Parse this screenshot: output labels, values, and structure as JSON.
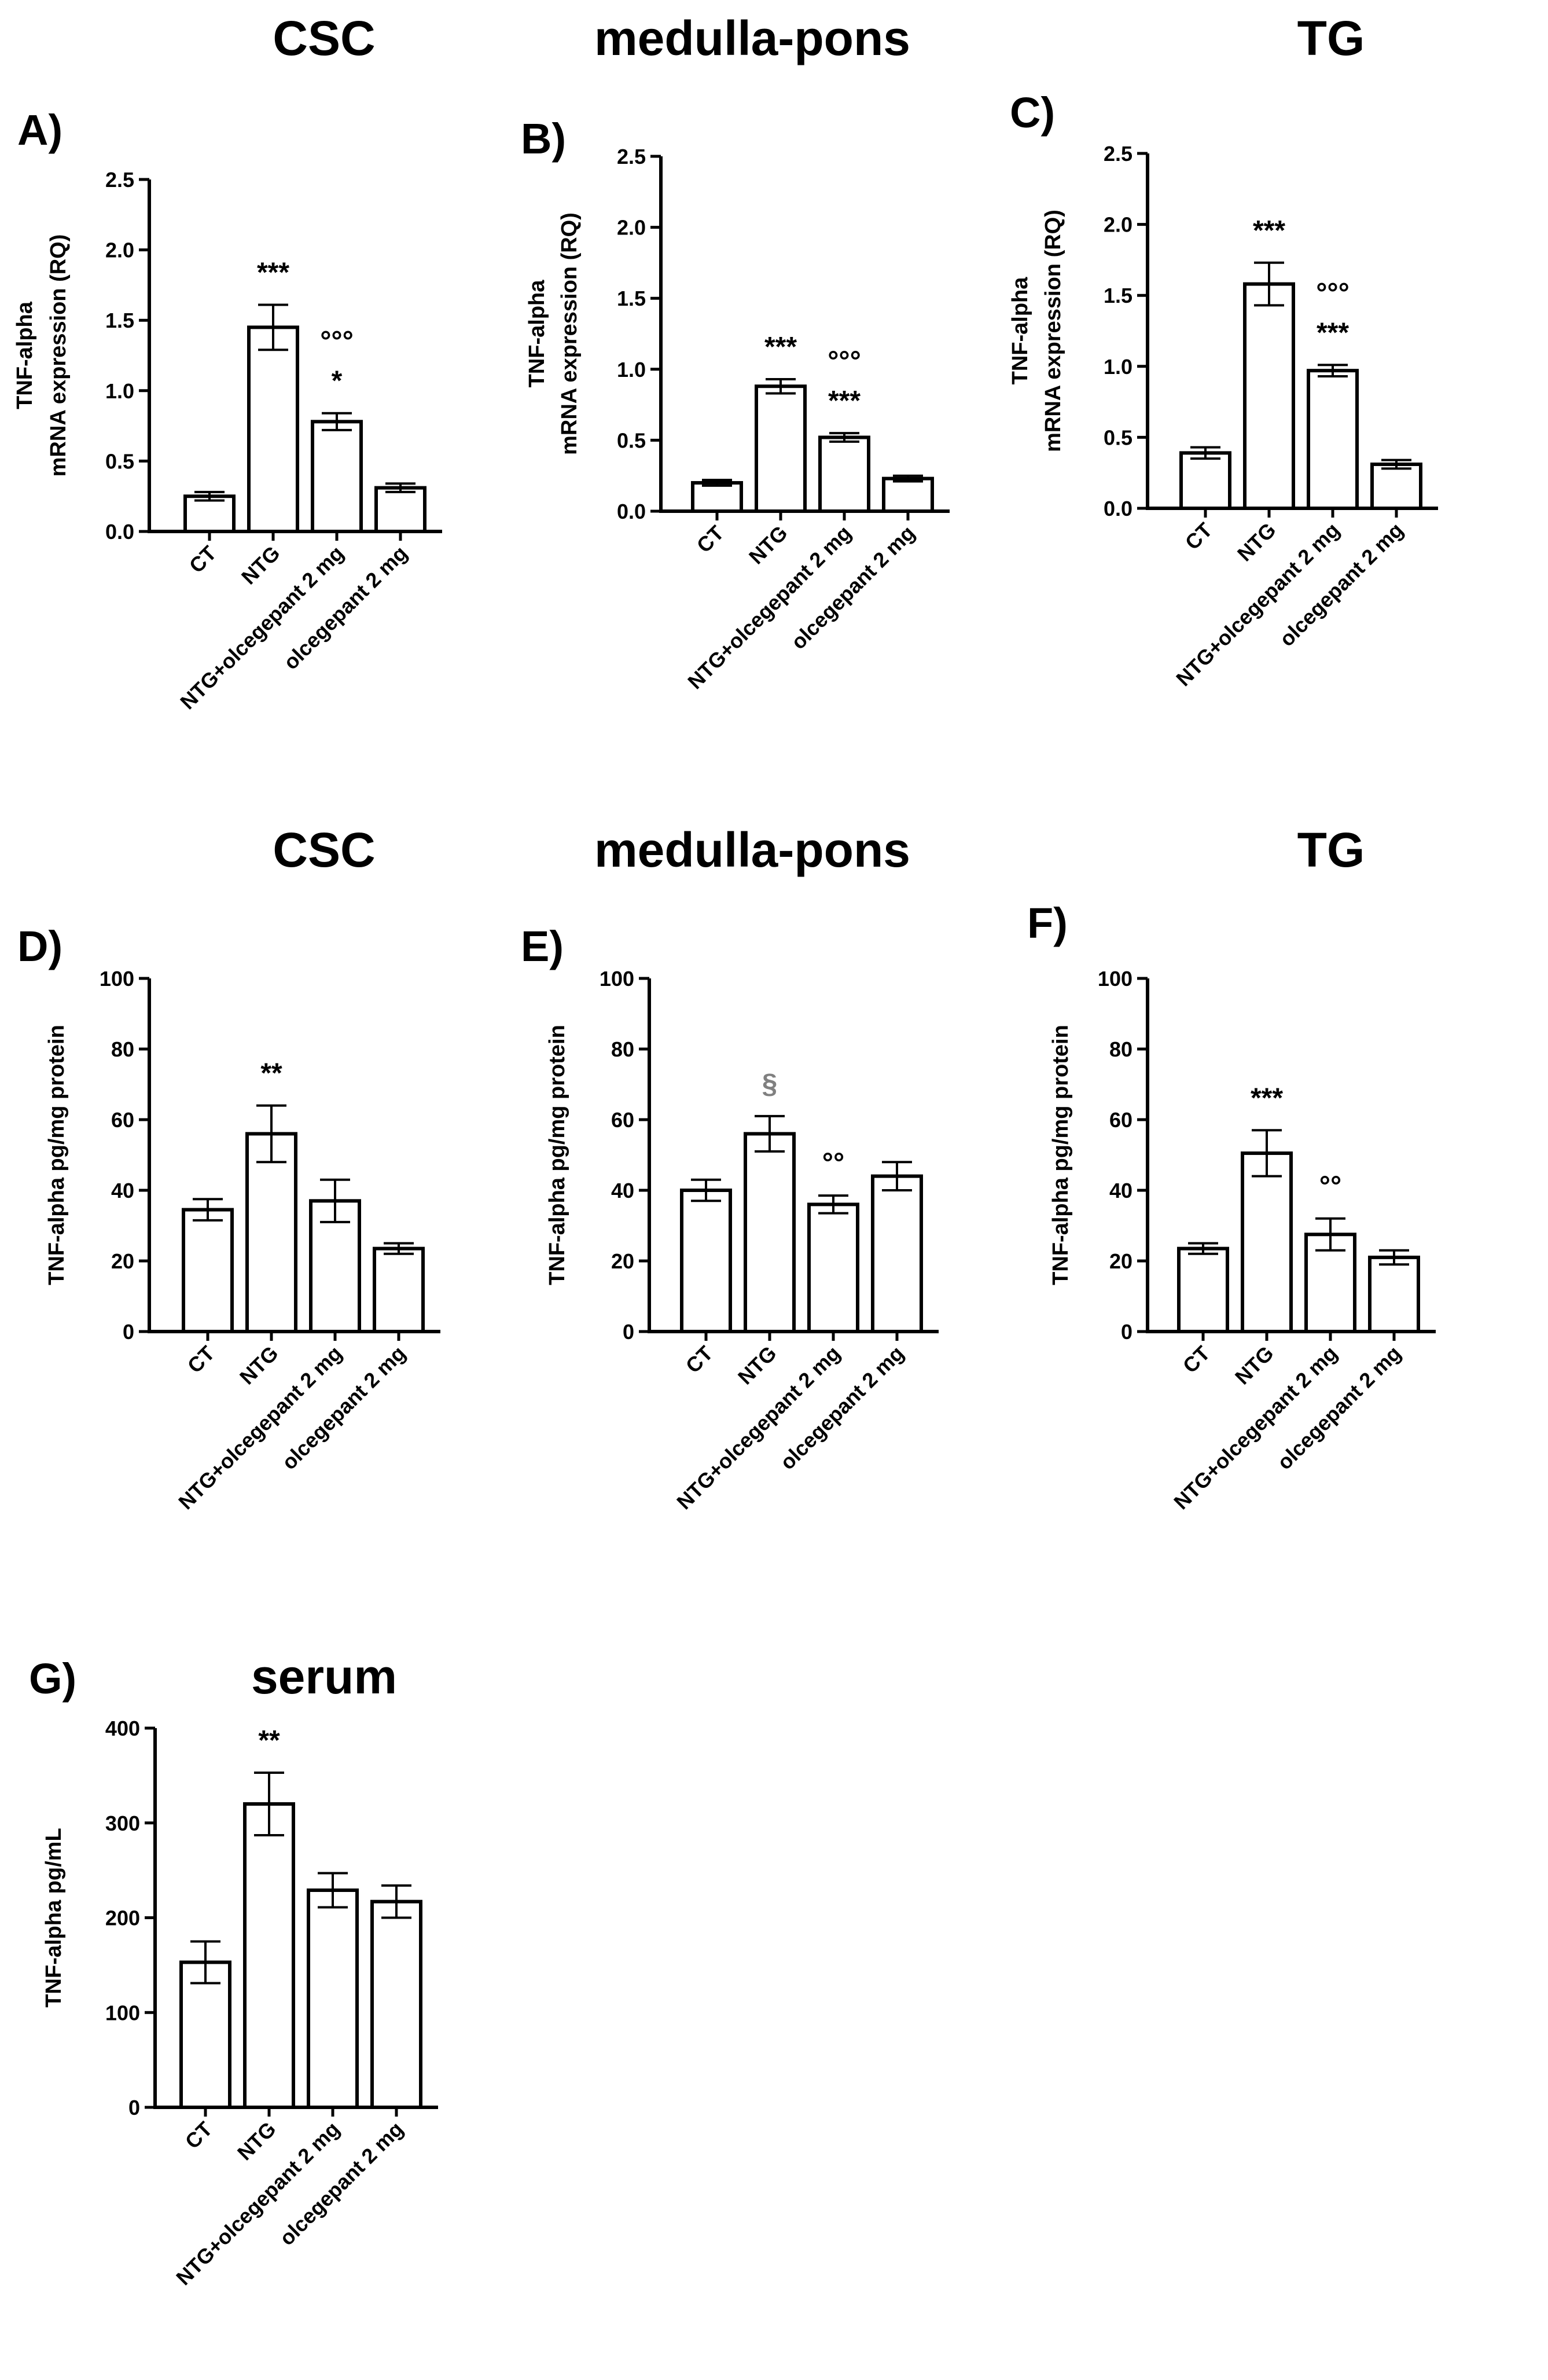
{
  "chart_data": [
    {
      "id": "A",
      "type": "bar",
      "title": "CSC",
      "panel_label": "A)",
      "ylabel": [
        "TNF-alpha",
        "mRNA expression (RQ)"
      ],
      "categories": [
        "CT",
        "NTG",
        "NTG+olcegepant 2 mg",
        "olcegepant 2 mg"
      ],
      "values": [
        0.25,
        1.45,
        0.78,
        0.31
      ],
      "errors": [
        0.03,
        0.16,
        0.06,
        0.03
      ],
      "ylim": [
        0,
        2.5
      ],
      "yticks": [
        "0.0",
        "0.5",
        "1.0",
        "1.5",
        "2.0",
        "2.5"
      ],
      "annotations": [
        {
          "bar": 1,
          "lines": [
            "***"
          ]
        },
        {
          "bar": 2,
          "lines": [
            "°°°",
            "*"
          ]
        }
      ]
    },
    {
      "id": "B",
      "type": "bar",
      "title": "medulla-pons",
      "panel_label": "B)",
      "ylabel": [
        "TNF-alpha",
        "mRNA expression (RQ)"
      ],
      "categories": [
        "CT",
        "NTG",
        "NTG+olcegepant 2 mg",
        "olcegepant 2 mg"
      ],
      "values": [
        0.2,
        0.88,
        0.52,
        0.23
      ],
      "errors": [
        0.02,
        0.05,
        0.03,
        0.02
      ],
      "ylim": [
        0,
        2.5
      ],
      "yticks": [
        "0.0",
        "0.5",
        "1.0",
        "1.5",
        "2.0",
        "2.5"
      ],
      "annotations": [
        {
          "bar": 1,
          "lines": [
            "***"
          ]
        },
        {
          "bar": 2,
          "lines": [
            "°°°",
            "***"
          ]
        }
      ]
    },
    {
      "id": "C",
      "type": "bar",
      "title": "TG",
      "panel_label": "C)",
      "ylabel": [
        "TNF-alpha",
        "mRNA expression (RQ)"
      ],
      "categories": [
        "CT",
        "NTG",
        "NTG+olcegepant 2 mg",
        "olcegepant 2 mg"
      ],
      "values": [
        0.39,
        1.58,
        0.97,
        0.31
      ],
      "errors": [
        0.04,
        0.15,
        0.04,
        0.03
      ],
      "ylim": [
        0,
        2.5
      ],
      "yticks": [
        "0.0",
        "0.5",
        "1.0",
        "1.5",
        "2.0",
        "2.5"
      ],
      "annotations": [
        {
          "bar": 1,
          "lines": [
            "***"
          ]
        },
        {
          "bar": 2,
          "lines": [
            "°°°",
            "***"
          ]
        }
      ]
    },
    {
      "id": "D",
      "type": "bar",
      "title": "CSC",
      "panel_label": "D)",
      "ylabel": [
        "TNF-alpha pg/mg protein"
      ],
      "categories": [
        "CT",
        "NTG",
        "NTG+olcegepant 2 mg",
        "olcegepant 2 mg"
      ],
      "values": [
        34.5,
        56,
        37,
        23.5
      ],
      "errors": [
        3,
        8,
        6,
        1.5
      ],
      "ylim": [
        0,
        100
      ],
      "yticks": [
        "0",
        "20",
        "40",
        "60",
        "80",
        "100"
      ],
      "annotations": [
        {
          "bar": 1,
          "lines": [
            "**"
          ]
        }
      ]
    },
    {
      "id": "E",
      "type": "bar",
      "title": "medulla-pons",
      "panel_label": "E)",
      "ylabel": [
        "TNF-alpha pg/mg protein"
      ],
      "categories": [
        "CT",
        "NTG",
        "NTG+olcegepant 2 mg",
        "olcegepant 2 mg"
      ],
      "values": [
        40,
        56,
        36,
        44
      ],
      "errors": [
        3,
        5,
        2.5,
        4
      ],
      "ylim": [
        0,
        100
      ],
      "yticks": [
        "0",
        "20",
        "40",
        "60",
        "80",
        "100"
      ],
      "annotations": [
        {
          "bar": 1,
          "lines": [
            "§"
          ],
          "grey": true
        },
        {
          "bar": 2,
          "lines": [
            "°°"
          ]
        }
      ]
    },
    {
      "id": "F",
      "type": "bar",
      "title": "TG",
      "panel_label": "F)",
      "ylabel": [
        "TNF-alpha pg/mg protein"
      ],
      "categories": [
        "CT",
        "NTG",
        "NTG+olcegepant 2 mg",
        "olcegepant 2 mg"
      ],
      "values": [
        23.5,
        50.5,
        27.5,
        21
      ],
      "errors": [
        1.5,
        6.5,
        4.5,
        2
      ],
      "ylim": [
        0,
        100
      ],
      "yticks": [
        "0",
        "20",
        "40",
        "60",
        "80",
        "100"
      ],
      "annotations": [
        {
          "bar": 1,
          "lines": [
            "***"
          ]
        },
        {
          "bar": 2,
          "lines": [
            "°°"
          ]
        }
      ]
    },
    {
      "id": "G",
      "type": "bar",
      "title": "serum",
      "panel_label": "G)",
      "ylabel": [
        "TNF-alpha pg/mL"
      ],
      "categories": [
        "CT",
        "NTG",
        "NTG+olcegepant 2 mg",
        "olcegepant 2 mg"
      ],
      "values": [
        153,
        320,
        229,
        217
      ],
      "errors": [
        22,
        33,
        18,
        17
      ],
      "ylim": [
        0,
        400
      ],
      "yticks": [
        "0",
        "100",
        "200",
        "300",
        "400"
      ],
      "annotations": [
        {
          "bar": 1,
          "lines": [
            "**"
          ]
        }
      ]
    }
  ]
}
